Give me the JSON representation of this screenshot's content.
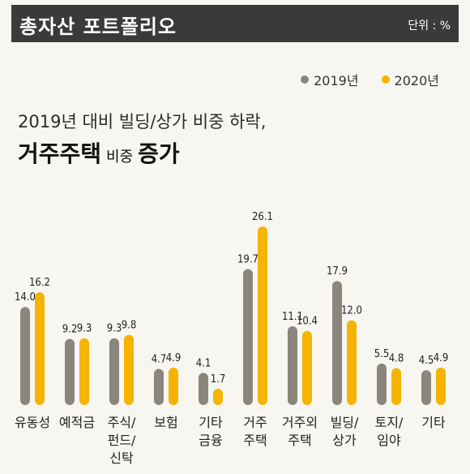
{
  "header": {
    "title": "총자산 포트폴리오",
    "unit": "단위 : %"
  },
  "headline": {
    "line1": "2019년 대비 빌딩/상가 비중 하락,",
    "line2_a": "거주주택",
    "line2_b": "비중",
    "line2_c": "증가"
  },
  "colors": {
    "s2019": "#8b857c",
    "s2020": "#f6b400"
  },
  "chart_data": {
    "type": "bar",
    "categories": [
      "유동성",
      "예적금",
      "주식/펀드/신탁",
      "보험",
      "기타 금융",
      "거주 주택",
      "거주외 주택",
      "빌딩/상가",
      "토지/임야",
      "기타"
    ],
    "category_lines": [
      [
        "유동성"
      ],
      [
        "예적금"
      ],
      [
        "주식/",
        "펀드/",
        "신탁"
      ],
      [
        "보험"
      ],
      [
        "기타",
        "금융"
      ],
      [
        "거주",
        "주택"
      ],
      [
        "거주외",
        "주택"
      ],
      [
        "빌딩/",
        "상가"
      ],
      [
        "토지/",
        "임야"
      ],
      [
        "기타"
      ]
    ],
    "series": [
      {
        "name": "2019년",
        "values": [
          14.0,
          9.2,
          9.3,
          4.7,
          4.1,
          19.7,
          11.1,
          17.9,
          5.5,
          4.5
        ],
        "labels": [
          "14.0",
          "9.2",
          "9.3",
          "4.7",
          "4.1",
          "19.7",
          "11.1",
          "17.9",
          "5.5",
          "4.5"
        ]
      },
      {
        "name": "2020년",
        "values": [
          16.2,
          9.3,
          9.8,
          4.9,
          1.7,
          26.1,
          10.4,
          12.0,
          4.8,
          4.9
        ],
        "labels": [
          "16.2",
          "9.3",
          "9.8",
          "4.9",
          "1.7",
          "26.1",
          "10.4",
          "12.0",
          "4.8",
          "4.9"
        ]
      }
    ]
  }
}
